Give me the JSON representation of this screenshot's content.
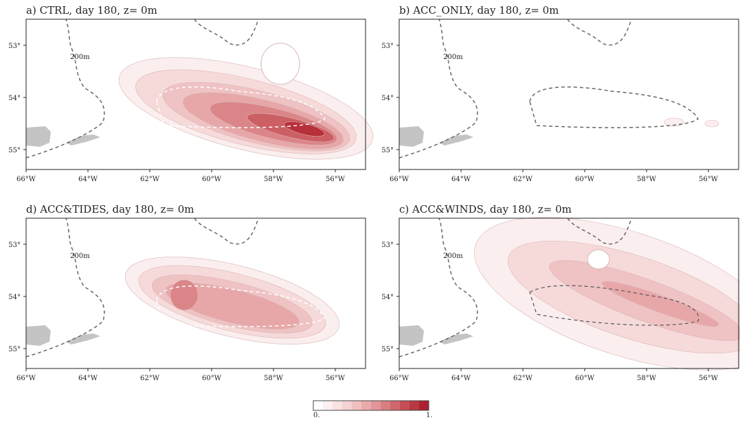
{
  "panels": [
    {
      "title": "a) CTRL, day 180, z= 0m",
      "depth_label": "200m",
      "xticks": [
        "66°W",
        "64°W",
        "62°W",
        "60°W",
        "58°W",
        "56°W"
      ],
      "yticks": [
        "53°",
        "54°",
        "55°"
      ]
    },
    {
      "title": "b) ACC_ONLY, day 180, z= 0m",
      "depth_label": "200m",
      "xticks": [
        "66°W",
        "64°W",
        "62°W",
        "60°W",
        "58°W",
        "56°W"
      ],
      "yticks": [
        "53°",
        "54°",
        "55°"
      ]
    },
    {
      "title": "d) ACC&TIDES, day 180, z= 0m",
      "depth_label": "200m",
      "xticks": [
        "66°W",
        "64°W",
        "62°W",
        "60°W",
        "58°W",
        "56°W"
      ],
      "yticks": [
        "53°",
        "54°",
        "55°"
      ]
    },
    {
      "title": "c) ACC&WINDS, day 180, z= 0m",
      "depth_label": "200m",
      "xticks": [
        "66°W",
        "64°W",
        "62°W",
        "60°W",
        "58°W",
        "56°W"
      ],
      "yticks": [
        "53°",
        "54°",
        "55°"
      ]
    }
  ],
  "colorbar": {
    "min_label": "0.",
    "max_label": "1."
  }
}
